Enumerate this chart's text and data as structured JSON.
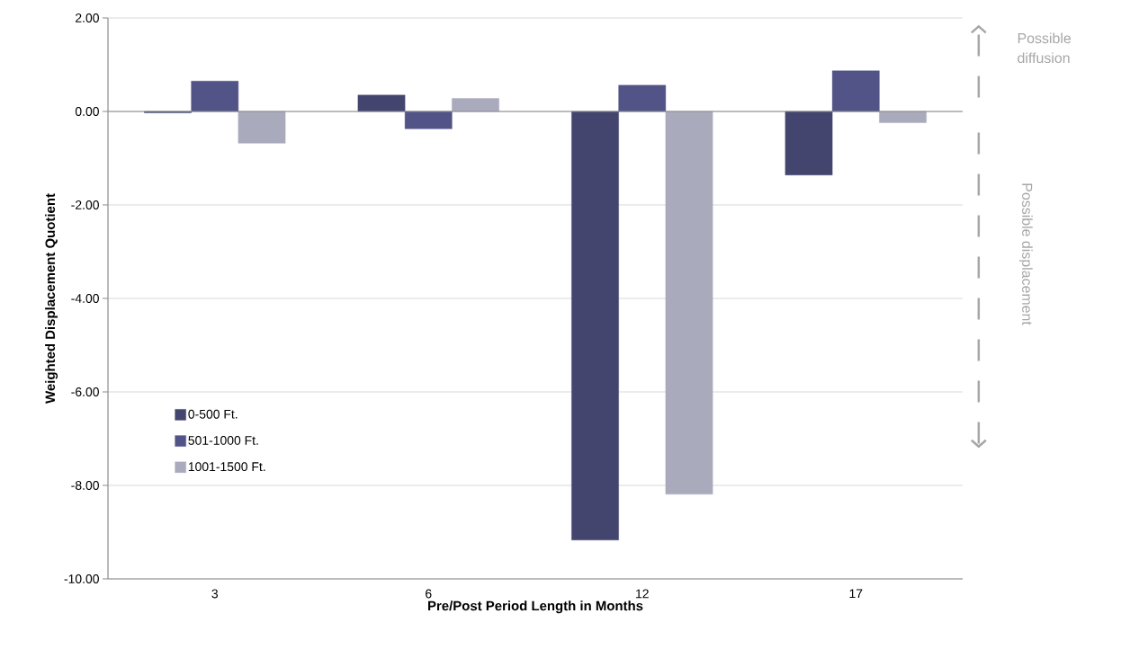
{
  "chart_data": {
    "type": "bar",
    "xlabel": "Pre/Post Period Length in Months",
    "ylabel": "Weighted Displacement Quotient",
    "categories": [
      "3",
      "6",
      "12",
      "17"
    ],
    "series": [
      {
        "name": "0-500 Ft.",
        "color": "#43456f",
        "values": [
          -0.03,
          0.35,
          -9.17,
          -1.36
        ]
      },
      {
        "name": "501-1000 Ft.",
        "color": "#525488",
        "values": [
          0.65,
          -0.37,
          0.56,
          0.87
        ]
      },
      {
        "name": "1001-1500 Ft.",
        "color": "#a9aabc",
        "values": [
          -0.68,
          0.28,
          -8.19,
          -0.24
        ]
      }
    ],
    "ylim": [
      -10,
      2
    ],
    "yticks": [
      {
        "value": -10,
        "label": "-10.00"
      },
      {
        "value": -8,
        "label": "-8.00"
      },
      {
        "value": -6,
        "label": "-6.00"
      },
      {
        "value": -4,
        "label": "-4.00"
      },
      {
        "value": -2,
        "label": "-2.00"
      },
      {
        "value": 0,
        "label": "0.00"
      },
      {
        "value": 2,
        "label": "2.00"
      }
    ],
    "grid": "y",
    "legend": "bottom left",
    "annotations": [
      "Possible diffusion",
      "Possible displacement"
    ]
  }
}
